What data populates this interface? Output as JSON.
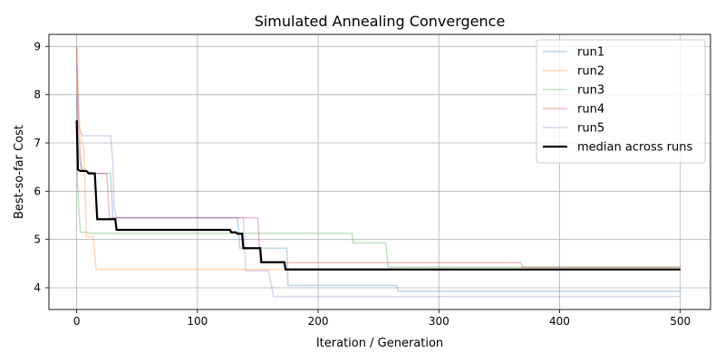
{
  "chart_data": {
    "type": "line",
    "title": "Simulated Annealing Convergence",
    "xlabel": "Iteration / Generation",
    "ylabel": "Best-so-far Cost",
    "xlim": [
      -23,
      525
    ],
    "ylim": [
      3.55,
      9.25
    ],
    "xticks": [
      0,
      100,
      200,
      300,
      400,
      500
    ],
    "yticks": [
      4,
      5,
      6,
      7,
      8,
      9
    ],
    "grid": true,
    "legend": {
      "placement": "top-right"
    },
    "series": [
      {
        "name": "run1",
        "color": "#1f77b4",
        "alpha": 0.3,
        "width": 1.5,
        "points": [
          [
            0,
            8.0
          ],
          [
            1,
            7.0
          ],
          [
            3,
            6.55
          ],
          [
            5,
            6.45
          ],
          [
            10,
            6.4
          ],
          [
            15,
            6.37
          ],
          [
            28,
            6.37
          ],
          [
            30,
            5.45
          ],
          [
            133,
            5.45
          ],
          [
            134,
            5.2
          ],
          [
            135,
            4.82
          ],
          [
            174,
            4.82
          ],
          [
            175,
            4.05
          ],
          [
            265,
            4.05
          ],
          [
            266,
            3.93
          ],
          [
            500,
            3.93
          ]
        ]
      },
      {
        "name": "run2",
        "color": "#ff7f0e",
        "alpha": 0.3,
        "width": 1.5,
        "points": [
          [
            0,
            9.0
          ],
          [
            1,
            8.3
          ],
          [
            2,
            7.5
          ],
          [
            4,
            7.0
          ],
          [
            6,
            6.9
          ],
          [
            8,
            5.05
          ],
          [
            14,
            5.05
          ],
          [
            16,
            4.38
          ],
          [
            368,
            4.38
          ],
          [
            369,
            4.38
          ],
          [
            500,
            4.38
          ]
        ]
      },
      {
        "name": "run3",
        "color": "#2ca02c",
        "alpha": 0.3,
        "width": 1.5,
        "points": [
          [
            0,
            6.6
          ],
          [
            1,
            6.0
          ],
          [
            3,
            5.15
          ],
          [
            8,
            5.15
          ],
          [
            10,
            5.13
          ],
          [
            228,
            5.13
          ],
          [
            229,
            4.93
          ],
          [
            256,
            4.93
          ],
          [
            258,
            4.43
          ],
          [
            500,
            4.43
          ]
        ]
      },
      {
        "name": "run4",
        "color": "#d62728",
        "alpha": 0.3,
        "width": 1.5,
        "points": [
          [
            0,
            9.0
          ],
          [
            1,
            7.5
          ],
          [
            2,
            7.1
          ],
          [
            4,
            6.45
          ],
          [
            8,
            6.4
          ],
          [
            12,
            6.37
          ],
          [
            25,
            6.37
          ],
          [
            27,
            5.45
          ],
          [
            150,
            5.45
          ],
          [
            152,
            4.52
          ],
          [
            368,
            4.52
          ],
          [
            369,
            4.43
          ],
          [
            500,
            4.43
          ]
        ]
      },
      {
        "name": "run5",
        "color": "#9467bd",
        "alpha": 0.3,
        "width": 1.5,
        "points": [
          [
            0,
            8.6
          ],
          [
            2,
            7.3
          ],
          [
            5,
            7.15
          ],
          [
            28,
            7.15
          ],
          [
            30,
            6.6
          ],
          [
            31,
            5.65
          ],
          [
            33,
            5.45
          ],
          [
            138,
            5.45
          ],
          [
            140,
            4.35
          ],
          [
            159,
            4.35
          ],
          [
            161,
            4.1
          ],
          [
            163,
            3.82
          ],
          [
            500,
            3.82
          ]
        ]
      },
      {
        "name": "median across runs",
        "color": "#000000",
        "alpha": 1,
        "width": 2.2,
        "points": [
          [
            0,
            7.47
          ],
          [
            1,
            6.45
          ],
          [
            3,
            6.42
          ],
          [
            8,
            6.42
          ],
          [
            10,
            6.37
          ],
          [
            15,
            6.37
          ],
          [
            17,
            5.42
          ],
          [
            32,
            5.42
          ],
          [
            33,
            5.2
          ],
          [
            127,
            5.2
          ],
          [
            128,
            5.15
          ],
          [
            132,
            5.15
          ],
          [
            133,
            5.12
          ],
          [
            137,
            5.12
          ],
          [
            138,
            4.82
          ],
          [
            152,
            4.82
          ],
          [
            153,
            4.53
          ],
          [
            172,
            4.53
          ],
          [
            173,
            4.38
          ],
          [
            500,
            4.38
          ]
        ]
      }
    ]
  }
}
